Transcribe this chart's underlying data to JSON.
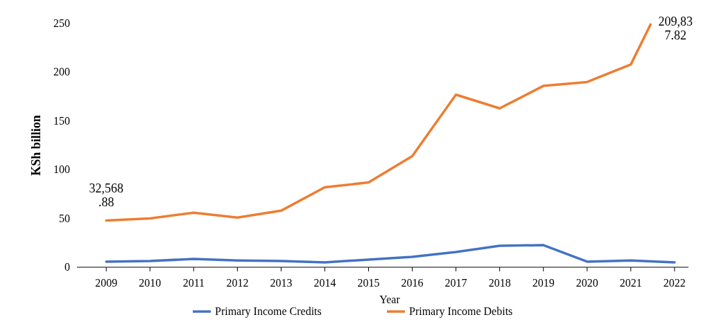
{
  "chart_data": {
    "type": "line",
    "xlabel": "Year",
    "ylabel": "KSh billion",
    "xlim": [
      2008.33,
      2022.32
    ],
    "xticks": [
      2009,
      2010,
      2011,
      2012,
      2013,
      2014,
      2015,
      2016,
      2017,
      2018,
      2019,
      2020,
      2021,
      2022
    ],
    "ylim": [
      0,
      250
    ],
    "yticks": [
      0,
      50,
      100,
      150,
      200,
      250
    ],
    "grid": false,
    "legend": "bottom",
    "marker": "none",
    "line_style": "solid",
    "series": [
      {
        "name": "Primary Income Credits",
        "color": "#4472c4",
        "x": [
          2009,
          2010,
          2011,
          2012,
          2013,
          2014,
          2015,
          2016,
          2017,
          2018,
          2019,
          2020,
          2021,
          2022
        ],
        "values": [
          5.7,
          6.4,
          8.5,
          7,
          6.4,
          5,
          7.8,
          10.6,
          15.6,
          22,
          22.7,
          5.7,
          7,
          5
        ]
      },
      {
        "name": "Primary Income Debits",
        "color": "#ed7d31",
        "x": [
          2009,
          2010,
          2011,
          2012,
          2013,
          2014,
          2015,
          2016,
          2017,
          2018,
          2019,
          2020,
          2021,
          2021.45
        ],
        "values": [
          48,
          50,
          56,
          51,
          58,
          82,
          87,
          114,
          177,
          163,
          186,
          190,
          208,
          249
        ]
      }
    ],
    "annotations": [
      {
        "text": "32,568.88",
        "x": 2009,
        "y": 48
      },
      {
        "text": "209,837.82",
        "x": 2021.45,
        "y": 249
      }
    ]
  }
}
